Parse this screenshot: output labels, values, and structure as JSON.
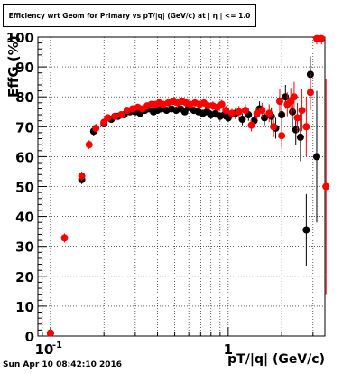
{
  "chart_data": {
    "type": "scatter",
    "title": "Efficiency wrt Geom for Primary vs pT/|q| (GeV/c) at | η | <= 1.0",
    "xlabel": "pT/|q| (GeV/c)",
    "ylabel": "EffG (%)",
    "xscale": "log",
    "xlim": [
      0.085,
      3.5
    ],
    "ylim": [
      0,
      100
    ],
    "grid": true,
    "x_tick_labels": [
      "10",
      "-1",
      "1"
    ],
    "y_tick_labels": [
      "0",
      "10",
      "20",
      "30",
      "40",
      "50",
      "60",
      "70",
      "80",
      "90",
      "100"
    ],
    "y_ticks": [
      0,
      10,
      20,
      30,
      40,
      50,
      60,
      70,
      80,
      90,
      100
    ],
    "series": [
      {
        "color": "#000000",
        "points": [
          [
            0.1,
            1.0,
            0.5
          ],
          [
            0.15,
            52.3,
            1.5
          ],
          [
            0.175,
            68.5,
            1.5
          ],
          [
            0.2,
            71.0,
            1.0
          ],
          [
            0.22,
            72.5,
            1.0
          ],
          [
            0.24,
            73.5,
            1.0
          ],
          [
            0.26,
            74.0,
            1.0
          ],
          [
            0.28,
            75.0,
            1.0
          ],
          [
            0.3,
            75.0,
            1.0
          ],
          [
            0.32,
            74.5,
            1.0
          ],
          [
            0.34,
            75.5,
            1.0
          ],
          [
            0.36,
            76.0,
            1.0
          ],
          [
            0.38,
            75.0,
            1.0
          ],
          [
            0.4,
            75.5,
            1.0
          ],
          [
            0.42,
            76.0,
            1.0
          ],
          [
            0.45,
            75.5,
            1.0
          ],
          [
            0.48,
            76.0,
            1.0
          ],
          [
            0.51,
            75.5,
            1.0
          ],
          [
            0.54,
            76.0,
            1.0
          ],
          [
            0.57,
            75.0,
            1.0
          ],
          [
            0.6,
            76.5,
            1.0
          ],
          [
            0.64,
            75.5,
            1.0
          ],
          [
            0.68,
            75.0,
            1.0
          ],
          [
            0.72,
            74.5,
            1.0
          ],
          [
            0.76,
            75.0,
            1.0
          ],
          [
            0.8,
            74.0,
            1.5
          ],
          [
            0.85,
            74.5,
            1.5
          ],
          [
            0.9,
            73.5,
            1.5
          ],
          [
            0.95,
            74.0,
            1.5
          ],
          [
            1.0,
            73.0,
            1.5
          ],
          [
            1.1,
            74.5,
            2.0
          ],
          [
            1.2,
            72.5,
            2.0
          ],
          [
            1.3,
            74.0,
            2.0
          ],
          [
            1.4,
            72.0,
            2.0
          ],
          [
            1.5,
            76.0,
            2.5
          ],
          [
            1.6,
            73.0,
            2.5
          ],
          [
            1.75,
            73.5,
            3.0
          ],
          [
            1.85,
            69.5,
            3.5
          ],
          [
            2.0,
            74.0,
            4.0
          ],
          [
            2.1,
            80.0,
            4.0
          ],
          [
            2.3,
            75.0,
            5.0
          ],
          [
            2.4,
            69.0,
            5.0
          ],
          [
            2.55,
            66.5,
            8.0
          ],
          [
            2.75,
            35.5,
            12.0
          ],
          [
            2.9,
            87.5,
            6.0
          ],
          [
            3.15,
            60.0,
            22.0
          ]
        ]
      },
      {
        "color": "#ff0000",
        "points": [
          [
            0.1,
            1.0,
            0.5
          ],
          [
            0.12,
            32.8,
            1.5
          ],
          [
            0.15,
            53.5,
            1.5
          ],
          [
            0.165,
            64.0,
            1.5
          ],
          [
            0.18,
            69.5,
            1.5
          ],
          [
            0.2,
            71.5,
            1.0
          ],
          [
            0.21,
            73.0,
            1.0
          ],
          [
            0.23,
            73.5,
            1.0
          ],
          [
            0.25,
            74.0,
            1.0
          ],
          [
            0.27,
            75.5,
            1.0
          ],
          [
            0.29,
            76.0,
            1.0
          ],
          [
            0.31,
            76.5,
            1.0
          ],
          [
            0.33,
            76.0,
            1.0
          ],
          [
            0.35,
            77.0,
            1.0
          ],
          [
            0.37,
            77.5,
            1.0
          ],
          [
            0.39,
            77.5,
            1.0
          ],
          [
            0.41,
            78.0,
            1.0
          ],
          [
            0.43,
            77.5,
            1.0
          ],
          [
            0.46,
            78.0,
            1.0
          ],
          [
            0.49,
            78.5,
            1.0
          ],
          [
            0.52,
            78.0,
            1.0
          ],
          [
            0.55,
            78.5,
            1.0
          ],
          [
            0.58,
            78.0,
            1.0
          ],
          [
            0.61,
            77.5,
            1.0
          ],
          [
            0.65,
            78.0,
            1.0
          ],
          [
            0.69,
            77.5,
            1.0
          ],
          [
            0.73,
            78.0,
            1.0
          ],
          [
            0.77,
            77.0,
            1.0
          ],
          [
            0.82,
            77.0,
            1.5
          ],
          [
            0.87,
            76.5,
            1.5
          ],
          [
            0.92,
            77.5,
            1.5
          ],
          [
            0.97,
            75.5,
            1.5
          ],
          [
            1.05,
            74.5,
            1.5
          ],
          [
            1.15,
            75.0,
            2.0
          ],
          [
            1.25,
            75.5,
            2.0
          ],
          [
            1.35,
            70.5,
            2.0
          ],
          [
            1.45,
            74.5,
            2.0
          ],
          [
            1.55,
            75.5,
            2.5
          ],
          [
            1.7,
            74.5,
            3.0
          ],
          [
            1.8,
            70.0,
            3.5
          ],
          [
            1.95,
            78.5,
            4.0
          ],
          [
            2.0,
            67.0,
            4.0
          ],
          [
            2.15,
            77.5,
            4.0
          ],
          [
            2.25,
            78.5,
            4.5
          ],
          [
            2.35,
            80.0,
            5.0
          ],
          [
            2.45,
            73.0,
            5.0
          ],
          [
            2.6,
            75.5,
            7.0
          ],
          [
            2.75,
            70.0,
            10.0
          ],
          [
            2.9,
            81.5,
            6.0
          ],
          [
            3.15,
            99.5,
            2.0
          ],
          [
            3.35,
            99.5,
            2.0
          ],
          [
            3.55,
            50.0,
            36.0
          ]
        ]
      }
    ]
  },
  "footer_stamp": "Sun Apr 10 08:42:10 2016"
}
